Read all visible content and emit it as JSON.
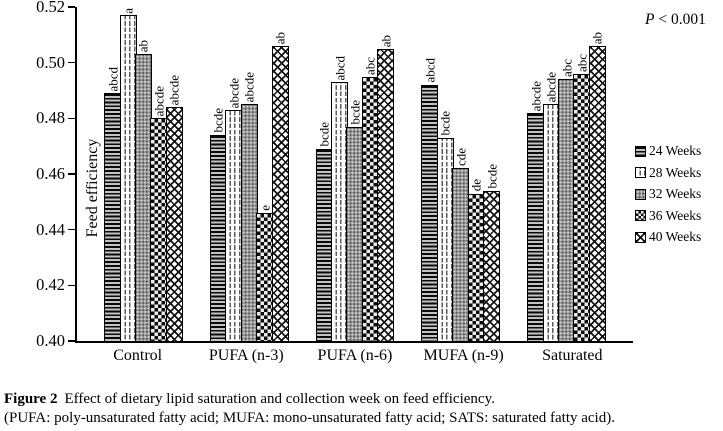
{
  "annotation": {
    "p_italic": "P",
    "p_rest": " < 0.001"
  },
  "caption": {
    "label": "Figure 2",
    "text": "Effect of dietary lipid saturation and collection week  on feed efficiency.",
    "note": "(PUFA: poly-unsaturated fatty acid; MUFA: mono-unsaturated fatty acid; SATS: saturated fatty acid)."
  },
  "chart_data": {
    "type": "bar",
    "title": "",
    "xlabel": "",
    "ylabel": "Feed efficiency",
    "ylim": [
      0.4,
      0.52
    ],
    "yticks": [
      0.4,
      0.42,
      0.44,
      0.46,
      0.48,
      0.5,
      0.52
    ],
    "grid": false,
    "legend_position": "right",
    "annotation": "P < 0.001",
    "categories": [
      "Control",
      "PUFA (n-3)",
      "PUFA (n-6)",
      "MUFA (n-9)",
      "Saturated"
    ],
    "series": [
      {
        "name": "24 Weeks",
        "pattern": "horizontal-lines",
        "values": [
          0.489,
          0.474,
          0.469,
          0.492,
          0.482
        ],
        "sig_labels": [
          "abcd",
          "bcde",
          "bcde",
          "abcd",
          "abcde"
        ]
      },
      {
        "name": "28 Weeks",
        "pattern": "vertical-dashes",
        "values": [
          0.517,
          0.483,
          0.493,
          0.473,
          0.485
        ],
        "sig_labels": [
          "a",
          "abcde",
          "abcd",
          "bcde",
          "abcde"
        ]
      },
      {
        "name": "32 Weeks",
        "pattern": "gray-speckle",
        "values": [
          0.503,
          0.485,
          0.477,
          0.462,
          0.494
        ],
        "sig_labels": [
          "ab",
          "abcde",
          "bcde",
          "cde",
          "abc"
        ]
      },
      {
        "name": "36 Weeks",
        "pattern": "dark-checker",
        "values": [
          0.48,
          0.446,
          0.495,
          0.453,
          0.496
        ],
        "sig_labels": [
          "abcde",
          "e",
          "abc",
          "de",
          "abc"
        ]
      },
      {
        "name": "40 Weeks",
        "pattern": "diamond-hatch",
        "values": [
          0.484,
          0.506,
          0.505,
          0.454,
          0.506
        ],
        "sig_labels": [
          "abcde",
          "ab",
          "ab",
          "bcde",
          "ab"
        ]
      }
    ]
  }
}
